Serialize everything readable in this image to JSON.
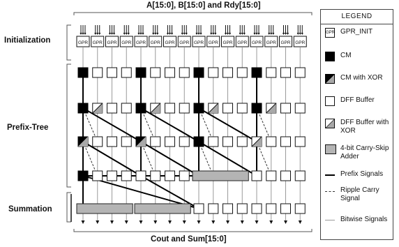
{
  "top_label": "A[15:0], B[15:0] and Rdy[15:0]",
  "bottom_label": "Cout and Sum[15:0]",
  "stages": {
    "initialization": "Initialization",
    "prefix_tree": "Prefix-Tree",
    "summation": "Summation"
  },
  "gpr_text": "GPR",
  "legend": {
    "title": "LEGEND",
    "items": [
      {
        "key": "gpr_init",
        "label": "GPR_INIT"
      },
      {
        "key": "cm",
        "label": "CM"
      },
      {
        "key": "cm_xor",
        "label": "CM with XOR"
      },
      {
        "key": "dff",
        "label": "DFF Buffer"
      },
      {
        "key": "dff_xor",
        "label": "DFF Buffer with XOR"
      },
      {
        "key": "carry_skip",
        "label": "4-bit Carry-Skip Adder"
      },
      {
        "key": "prefix",
        "label": "Prefix Signals"
      },
      {
        "key": "ripple",
        "label": "Ripple Carry Signal"
      },
      {
        "key": "bitwise",
        "label": "Bitwise Signals"
      }
    ]
  },
  "colors": {
    "cm": "#000000",
    "dff": "#ffffff",
    "adder": "#b4b4b4",
    "xor_half": "#a8a8a8",
    "line": "#000000",
    "bitwise": "#9a9a9a"
  },
  "diagram": {
    "columns": 16,
    "rows": [
      {
        "stage": "prefix_tree",
        "cells": [
          "cm",
          "dff",
          "dff",
          "dff",
          "cm",
          "dff",
          "dff",
          "dff",
          "cm",
          "dff",
          "dff",
          "dff",
          "cm",
          "dff",
          "dff",
          "dff"
        ]
      },
      {
        "stage": "prefix_tree",
        "cells": [
          "cm",
          "dff_xor",
          "dff",
          "dff",
          "cm",
          "dff_xor",
          "dff",
          "dff",
          "cm",
          "dff_xor",
          "dff",
          "dff",
          "cm",
          "dff_xor",
          "dff",
          "dff"
        ]
      },
      {
        "stage": "prefix_tree",
        "cells": [
          "cm_xor",
          "dff",
          "dff",
          "dff",
          "cm_xor",
          "dff",
          "dff",
          "dff",
          "cm",
          "dff",
          "dff",
          "dff",
          "dff_xor",
          "dff",
          "dff",
          "dff"
        ]
      },
      {
        "stage": "prefix_tree",
        "cells": [
          "cm",
          "dff",
          "dff",
          "dff",
          "dff",
          "dff",
          "dff",
          "dff",
          "adder",
          "adder",
          "adder",
          "adder",
          "dff",
          "dff",
          "dff",
          "dff"
        ]
      },
      {
        "stage": "summation",
        "cells": [
          "adder",
          "adder",
          "adder",
          "adder",
          "adder",
          "adder",
          "adder",
          "adder",
          "dff",
          "dff",
          "dff",
          "dff",
          "dff",
          "dff",
          "dff",
          "dff"
        ]
      }
    ],
    "prefix_links": [
      {
        "from": [
          3,
          4
        ],
        "to": [
          4,
          8
        ]
      },
      {
        "from": [
          3,
          4
        ],
        "to": [
          3,
          8
        ]
      },
      {
        "from": [
          3,
          0
        ],
        "to": [
          4,
          8
        ]
      },
      {
        "from": [
          3,
          0
        ],
        "to": [
          3,
          4
        ]
      },
      {
        "from": [
          2,
          0
        ],
        "to": [
          3,
          4
        ]
      },
      {
        "from": [
          2,
          4
        ],
        "to": [
          3,
          8
        ]
      },
      {
        "from": [
          2,
          8
        ],
        "to": [
          3,
          12
        ]
      },
      {
        "from": [
          1,
          0
        ],
        "to": [
          2,
          4
        ]
      },
      {
        "from": [
          1,
          4
        ],
        "to": [
          2,
          8
        ]
      },
      {
        "from": [
          1,
          8
        ],
        "to": [
          2,
          12
        ]
      }
    ],
    "ripple_links": [
      {
        "from": [
          1,
          0
        ],
        "to": [
          2,
          1
        ]
      },
      {
        "from": [
          1,
          4
        ],
        "to": [
          2,
          5
        ]
      },
      {
        "from": [
          1,
          8
        ],
        "to": [
          2,
          9
        ]
      },
      {
        "from": [
          1,
          12
        ],
        "to": [
          2,
          13
        ]
      },
      {
        "from": [
          2,
          0
        ],
        "to": [
          3,
          1
        ]
      },
      {
        "from": [
          2,
          4
        ],
        "to": [
          3,
          5
        ]
      },
      {
        "from": [
          2,
          8
        ],
        "to": [
          3,
          9
        ]
      },
      {
        "from": [
          2,
          12
        ],
        "to": [
          3,
          13
        ]
      }
    ]
  }
}
